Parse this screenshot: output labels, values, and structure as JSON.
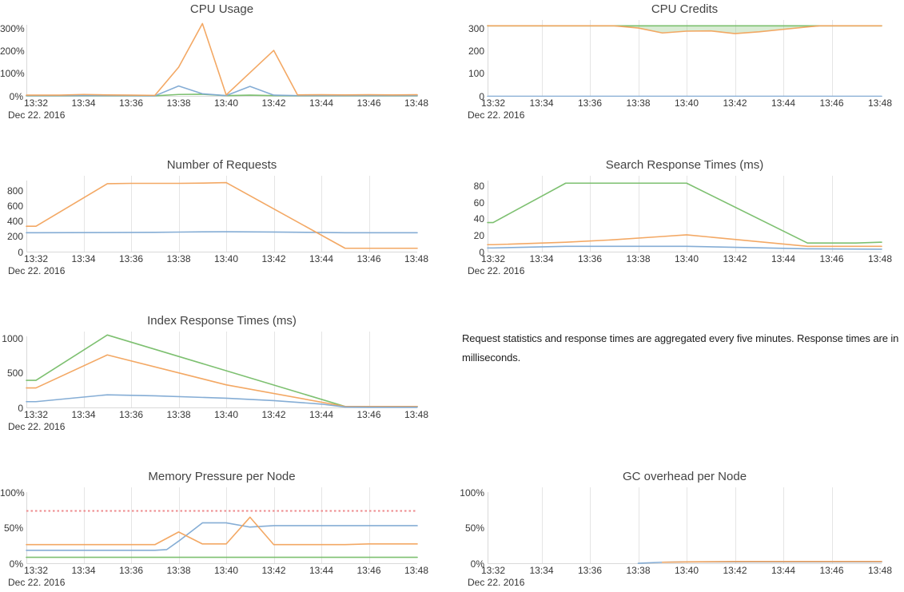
{
  "colors": {
    "blue": "#7ea9d3",
    "orange": "#f2a35c",
    "green": "#76bd68",
    "threshold_red": "#ee8a8c",
    "grid": "#e5e5e5",
    "axis": "#d9d9d9",
    "title_text": "#444444",
    "tick_text": "#363636"
  },
  "x_axis": {
    "ticks": [
      "13:32",
      "13:34",
      "13:36",
      "13:38",
      "13:40",
      "13:42",
      "13:44",
      "13:46",
      "13:48"
    ],
    "date_label": "Dec 22. 2016"
  },
  "note": {
    "text": "Request statistics and response times are aggregated every five minutes. Response times are in milliseconds."
  },
  "chart_data": [
    {
      "type": "line",
      "title": "CPU Usage",
      "ylim": [
        0,
        341
      ],
      "gridlines": false,
      "y_ticks": [
        {
          "label": "0%",
          "v": 0
        },
        {
          "label": "100%",
          "v": 100
        },
        {
          "label": "200%",
          "v": 200
        },
        {
          "label": "300%",
          "v": 300
        }
      ],
      "series": [
        {
          "name": "green",
          "color": "green",
          "points": [
            [
              0,
              2
            ],
            [
              1,
              2
            ],
            [
              2,
              2
            ],
            [
              3,
              2
            ],
            [
              4,
              2
            ],
            [
              5,
              2
            ],
            [
              6,
              8
            ],
            [
              7,
              9
            ],
            [
              8,
              3
            ],
            [
              9,
              5
            ],
            [
              10,
              3
            ],
            [
              11,
              2
            ],
            [
              12,
              2
            ],
            [
              13,
              2
            ],
            [
              14,
              2
            ],
            [
              15,
              2
            ],
            [
              16,
              2
            ]
          ]
        },
        {
          "name": "blue",
          "color": "blue",
          "points": [
            [
              0,
              3
            ],
            [
              1,
              3
            ],
            [
              2,
              3
            ],
            [
              3,
              3
            ],
            [
              4,
              3
            ],
            [
              5,
              2
            ],
            [
              6,
              46
            ],
            [
              7,
              11
            ],
            [
              8,
              3
            ],
            [
              9,
              44
            ],
            [
              10,
              5
            ],
            [
              11,
              3
            ],
            [
              12,
              3
            ],
            [
              13,
              3
            ],
            [
              14,
              3
            ],
            [
              15,
              3
            ],
            [
              16,
              3
            ]
          ]
        },
        {
          "name": "orange",
          "color": "orange",
          "points": [
            [
              0,
              5
            ],
            [
              1,
              5
            ],
            [
              2,
              8
            ],
            [
              3,
              6
            ],
            [
              4,
              5
            ],
            [
              5,
              4
            ],
            [
              6,
              130
            ],
            [
              7,
              325
            ],
            [
              8,
              6
            ],
            [
              10,
              205
            ],
            [
              11,
              6
            ],
            [
              12,
              7
            ],
            [
              13,
              6
            ],
            [
              14,
              7
            ],
            [
              15,
              6
            ],
            [
              16,
              7
            ]
          ]
        }
      ]
    },
    {
      "type": "line",
      "title": "CPU Credits",
      "ylim": [
        0,
        341
      ],
      "gridlines": true,
      "y_ticks": [
        {
          "label": "0",
          "v": 0
        },
        {
          "label": "100",
          "v": 100
        },
        {
          "label": "200",
          "v": 200
        },
        {
          "label": "300",
          "v": 300
        }
      ],
      "fill_between": {
        "upper": "green",
        "lower": "orange",
        "fill": "rgba(118,185,103,0.28)"
      },
      "series": [
        {
          "name": "green",
          "color": "green",
          "points": [
            [
              0,
              315
            ],
            [
              16,
              315
            ]
          ]
        },
        {
          "name": "blue",
          "color": "blue",
          "points": [
            [
              0,
              0
            ],
            [
              16,
              0
            ]
          ]
        },
        {
          "name": "orange",
          "color": "orange",
          "points": [
            [
              0,
              315
            ],
            [
              5,
              315
            ],
            [
              6,
              305
            ],
            [
              7,
              283
            ],
            [
              8,
              291
            ],
            [
              9,
              292
            ],
            [
              10,
              280
            ],
            [
              11,
              288
            ],
            [
              12,
              299
            ],
            [
              13,
              310
            ],
            [
              13.5,
              315
            ],
            [
              16,
              315
            ]
          ]
        }
      ]
    },
    {
      "type": "line",
      "title": "Number of Requests",
      "ylim": [
        0,
        1005
      ],
      "gridlines": true,
      "y_ticks": [
        {
          "label": "0",
          "v": 0
        },
        {
          "label": "200",
          "v": 200
        },
        {
          "label": "400",
          "v": 400
        },
        {
          "label": "600",
          "v": 600
        },
        {
          "label": "800",
          "v": 800
        }
      ],
      "series": [
        {
          "name": "blue",
          "color": "blue",
          "points": [
            [
              0,
              255
            ],
            [
              3,
              257
            ],
            [
              5,
              260
            ],
            [
              6,
              263
            ],
            [
              7,
              266
            ],
            [
              8,
              268
            ],
            [
              10,
              264
            ],
            [
              12,
              258
            ],
            [
              13,
              255
            ],
            [
              16,
              255
            ]
          ]
        },
        {
          "name": "orange",
          "color": "orange",
          "points": [
            [
              0,
              340
            ],
            [
              3,
              900
            ],
            [
              4,
              905
            ],
            [
              5,
              905
            ],
            [
              6,
              905
            ],
            [
              7,
              908
            ],
            [
              8,
              915
            ],
            [
              13,
              50
            ],
            [
              16,
              50
            ]
          ]
        }
      ]
    },
    {
      "type": "line",
      "title": "Search Response Times (ms)",
      "ylim": [
        0,
        93
      ],
      "gridlines": true,
      "y_ticks": [
        {
          "label": "0",
          "v": 0
        },
        {
          "label": "20",
          "v": 20
        },
        {
          "label": "40",
          "v": 40
        },
        {
          "label": "60",
          "v": 60
        },
        {
          "label": "80",
          "v": 80
        }
      ],
      "series": [
        {
          "name": "green",
          "color": "green",
          "points": [
            [
              0,
              36
            ],
            [
              1,
              52
            ],
            [
              2,
              68
            ],
            [
              3,
              84
            ],
            [
              8,
              84
            ],
            [
              13,
              11
            ],
            [
              15,
              11
            ],
            [
              16,
              12
            ]
          ]
        },
        {
          "name": "blue",
          "color": "blue",
          "points": [
            [
              0,
              5
            ],
            [
              3,
              7
            ],
            [
              8,
              7
            ],
            [
              13,
              4
            ],
            [
              16,
              3.5
            ]
          ]
        },
        {
          "name": "orange",
          "color": "orange",
          "points": [
            [
              0,
              9
            ],
            [
              3,
              12
            ],
            [
              5,
              15
            ],
            [
              7,
              19
            ],
            [
              8,
              21
            ],
            [
              13,
              7
            ],
            [
              16,
              7
            ]
          ]
        }
      ]
    },
    {
      "type": "line",
      "title": "Index Response Times (ms)",
      "ylim": [
        0,
        1110
      ],
      "gridlines": true,
      "y_ticks": [
        {
          "label": "0",
          "v": 0
        },
        {
          "label": "500",
          "v": 500
        },
        {
          "label": "1000",
          "v": 1000
        }
      ],
      "series": [
        {
          "name": "green",
          "color": "green",
          "points": [
            [
              0,
              400
            ],
            [
              3,
              1060
            ],
            [
              13,
              20
            ],
            [
              16,
              20
            ]
          ]
        },
        {
          "name": "orange",
          "color": "orange",
          "points": [
            [
              0,
              290
            ],
            [
              3,
              770
            ],
            [
              8,
              335
            ],
            [
              13,
              20
            ],
            [
              16,
              20
            ]
          ]
        },
        {
          "name": "blue",
          "color": "blue",
          "points": [
            [
              0,
              90
            ],
            [
              3,
              190
            ],
            [
              5,
              175
            ],
            [
              8,
              140
            ],
            [
              10,
              105
            ],
            [
              12,
              55
            ],
            [
              13,
              12
            ],
            [
              14,
              10
            ],
            [
              16,
              10
            ]
          ]
        }
      ]
    },
    {
      "type": "line",
      "title": "Memory Pressure per Node",
      "ylim": [
        0,
        108.5
      ],
      "gridlines": true,
      "y_ticks": [
        {
          "label": "0%",
          "v": 0
        },
        {
          "label": "50%",
          "v": 50
        },
        {
          "label": "100%",
          "v": 100
        }
      ],
      "threshold": {
        "value": 75,
        "style": "dotted",
        "color": "threshold_red"
      },
      "series": [
        {
          "name": "green",
          "color": "green",
          "points": [
            [
              0,
              9
            ],
            [
              16,
              9
            ]
          ]
        },
        {
          "name": "blue",
          "color": "blue",
          "points": [
            [
              0,
              19
            ],
            [
              5,
              19
            ],
            [
              5.5,
              20
            ],
            [
              6,
              32
            ],
            [
              7,
              58
            ],
            [
              8,
              58
            ],
            [
              9,
              52
            ],
            [
              10,
              54
            ],
            [
              16,
              54
            ]
          ]
        },
        {
          "name": "orange",
          "color": "orange",
          "points": [
            [
              0,
              27
            ],
            [
              5,
              27
            ],
            [
              6,
              45
            ],
            [
              7,
              28
            ],
            [
              8,
              28
            ],
            [
              9,
              66
            ],
            [
              10,
              27
            ],
            [
              13,
              27
            ],
            [
              14,
              28
            ],
            [
              16,
              28
            ]
          ]
        }
      ]
    },
    {
      "type": "line",
      "title": "GC overhead per Node",
      "ylim": [
        0,
        108.5
      ],
      "gridlines": true,
      "y_ticks": [
        {
          "label": "0%",
          "v": 0
        },
        {
          "label": "50%",
          "v": 50
        },
        {
          "label": "100%",
          "v": 100
        }
      ],
      "series": [
        {
          "name": "blue",
          "color": "blue",
          "points": [
            [
              6,
              0.5
            ],
            [
              7,
              2
            ],
            [
              8,
              2.5
            ],
            [
              16,
              2.5
            ]
          ]
        },
        {
          "name": "orange",
          "color": "orange",
          "points": [
            [
              7,
              2
            ],
            [
              8,
              2.5
            ],
            [
              10,
              3
            ],
            [
              16,
              3
            ]
          ]
        }
      ]
    }
  ]
}
